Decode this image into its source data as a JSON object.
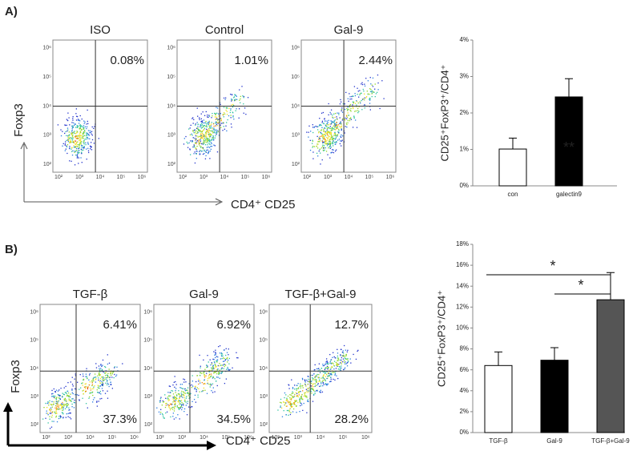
{
  "panel_a": {
    "label": "A)",
    "y_label": "Foxp3",
    "x_label": "CD4⁺ CD25",
    "plots": [
      {
        "title": "ISO",
        "upper_right": "0.08%"
      },
      {
        "title": "Control",
        "upper_right": "1.01%"
      },
      {
        "title": "Gal-9",
        "upper_right": "2.44%"
      }
    ]
  },
  "panel_b": {
    "label": "B)",
    "y_label": "Foxp3",
    "x_label": "CD4⁺ CD25",
    "plots": [
      {
        "title": "TGF-β",
        "upper_right": "6.41%",
        "lower_right": "37.3%"
      },
      {
        "title": "Gal-9",
        "upper_right": "6.92%",
        "lower_right": "34.5%"
      },
      {
        "title": "TGF-β+Gal-9",
        "upper_right": "12.7%",
        "lower_right": "28.2%"
      }
    ]
  },
  "flow_ticks": [
    "10²",
    "10³",
    "10⁴",
    "10⁵",
    "10⁶"
  ],
  "chart_data": [
    {
      "type": "bar",
      "y_label": "CD25⁺FoxP3⁺/CD4⁺",
      "categories": [
        "con",
        "galectin9"
      ],
      "values": [
        1.01,
        2.44
      ],
      "errors": [
        0.3,
        0.5
      ],
      "colors": [
        "#ffffff",
        "#000000"
      ],
      "ylim": [
        0,
        4
      ],
      "yticks": [
        {
          "value": 0,
          "label": "0%"
        },
        {
          "value": 1,
          "label": "1%"
        },
        {
          "value": 2,
          "label": "2%"
        },
        {
          "value": 3,
          "label": "3%"
        },
        {
          "value": 4,
          "label": "4%"
        }
      ],
      "annotations": [
        "**"
      ]
    },
    {
      "type": "bar",
      "y_label": "CD25⁺FoxP3⁺/CD4⁺",
      "categories": [
        "TGF-β",
        "Gal-9",
        "TGF-β+Gal-9"
      ],
      "values": [
        6.41,
        6.92,
        12.7
      ],
      "errors": [
        1.3,
        1.2,
        2.6
      ],
      "colors": [
        "#ffffff",
        "#000000",
        "#555555"
      ],
      "ylim": [
        0,
        18
      ],
      "yticks": [
        {
          "value": 0,
          "label": "0%"
        },
        {
          "value": 2,
          "label": "2%"
        },
        {
          "value": 4,
          "label": "4%"
        },
        {
          "value": 6,
          "label": "6%"
        },
        {
          "value": 8,
          "label": "8%"
        },
        {
          "value": 10,
          "label": "10%"
        },
        {
          "value": 12,
          "label": "12%"
        },
        {
          "value": 14,
          "label": "14%"
        },
        {
          "value": 16,
          "label": "16%"
        },
        {
          "value": 18,
          "label": "18%"
        }
      ],
      "annotations": [
        "*",
        "*"
      ]
    }
  ]
}
